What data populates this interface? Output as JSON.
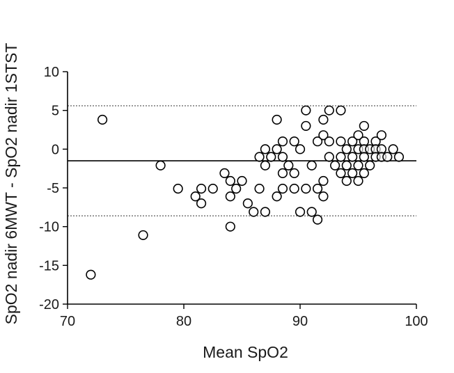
{
  "chart_data": {
    "type": "scatter",
    "title": "",
    "xlabel": "Mean SpO2",
    "ylabel": "SpO2 nadir 6MWT - SpO2 nadir 1STST",
    "xlim": [
      70,
      100
    ],
    "ylim": [
      -20,
      10
    ],
    "xticks": [
      70,
      80,
      90,
      100
    ],
    "yticks": [
      10,
      5,
      0,
      -5,
      -10,
      -15,
      -20
    ],
    "grid": false,
    "legend": "none",
    "reference_lines": {
      "mean_difference": -1.5,
      "upper_limit": 5.6,
      "lower_limit": -8.6
    },
    "series": [
      {
        "marker": "open-circle",
        "points": [
          [
            72.0,
            -16.2
          ],
          [
            73.0,
            3.8
          ],
          [
            76.5,
            -11.1
          ],
          [
            78.0,
            -2.1
          ],
          [
            79.5,
            -5.1
          ],
          [
            81.0,
            -6.1
          ],
          [
            81.5,
            -5.1
          ],
          [
            81.5,
            -7.0
          ],
          [
            82.5,
            -5.1
          ],
          [
            83.5,
            -3.1
          ],
          [
            84.0,
            -4.1
          ],
          [
            84.0,
            -6.1
          ],
          [
            84.0,
            -10.0
          ],
          [
            84.5,
            -5.1
          ],
          [
            85.0,
            -4.1
          ],
          [
            85.5,
            -7.0
          ],
          [
            86.0,
            -8.1
          ],
          [
            86.5,
            -1.0
          ],
          [
            86.5,
            -5.1
          ],
          [
            87.0,
            0.0
          ],
          [
            87.0,
            -2.1
          ],
          [
            87.0,
            -8.1
          ],
          [
            87.5,
            -1.0
          ],
          [
            88.0,
            3.8
          ],
          [
            88.0,
            -6.1
          ],
          [
            88.0,
            0.0
          ],
          [
            88.5,
            1.0
          ],
          [
            88.5,
            -1.0
          ],
          [
            88.5,
            -3.1
          ],
          [
            88.5,
            -5.1
          ],
          [
            89.0,
            -2.1
          ],
          [
            89.5,
            1.0
          ],
          [
            89.5,
            -3.1
          ],
          [
            89.5,
            -5.1
          ],
          [
            90.0,
            -8.1
          ],
          [
            90.0,
            0.0
          ],
          [
            90.5,
            5.0
          ],
          [
            90.5,
            3.0
          ],
          [
            90.5,
            -5.1
          ],
          [
            91.0,
            -2.1
          ],
          [
            91.0,
            -8.1
          ],
          [
            91.5,
            1.0
          ],
          [
            91.5,
            -5.1
          ],
          [
            91.5,
            -9.1
          ],
          [
            92.0,
            3.8
          ],
          [
            92.0,
            1.8
          ],
          [
            92.0,
            -4.1
          ],
          [
            92.0,
            -6.1
          ],
          [
            92.5,
            5.0
          ],
          [
            92.5,
            1.0
          ],
          [
            92.5,
            -1.0
          ],
          [
            93.0,
            -2.1
          ],
          [
            93.5,
            5.0
          ],
          [
            93.5,
            1.0
          ],
          [
            93.5,
            -1.0
          ],
          [
            93.5,
            -3.1
          ],
          [
            94.0,
            0.0
          ],
          [
            94.0,
            -2.1
          ],
          [
            94.0,
            -4.1
          ],
          [
            94.5,
            1.0
          ],
          [
            94.5,
            -1.0
          ],
          [
            94.5,
            -3.1
          ],
          [
            95.0,
            1.8
          ],
          [
            95.0,
            0.0
          ],
          [
            95.0,
            -2.1
          ],
          [
            95.0,
            -4.1
          ],
          [
            95.5,
            3.0
          ],
          [
            95.5,
            1.0
          ],
          [
            95.5,
            0.0
          ],
          [
            95.5,
            -1.0
          ],
          [
            95.5,
            -3.1
          ],
          [
            96.0,
            0.0
          ],
          [
            96.0,
            -2.1
          ],
          [
            96.5,
            1.0
          ],
          [
            96.5,
            0.0
          ],
          [
            96.5,
            -1.0
          ],
          [
            97.0,
            1.8
          ],
          [
            97.0,
            0.0
          ],
          [
            97.0,
            -1.0
          ],
          [
            97.5,
            -1.0
          ],
          [
            98.0,
            0.0
          ],
          [
            98.5,
            -1.0
          ]
        ]
      }
    ]
  }
}
